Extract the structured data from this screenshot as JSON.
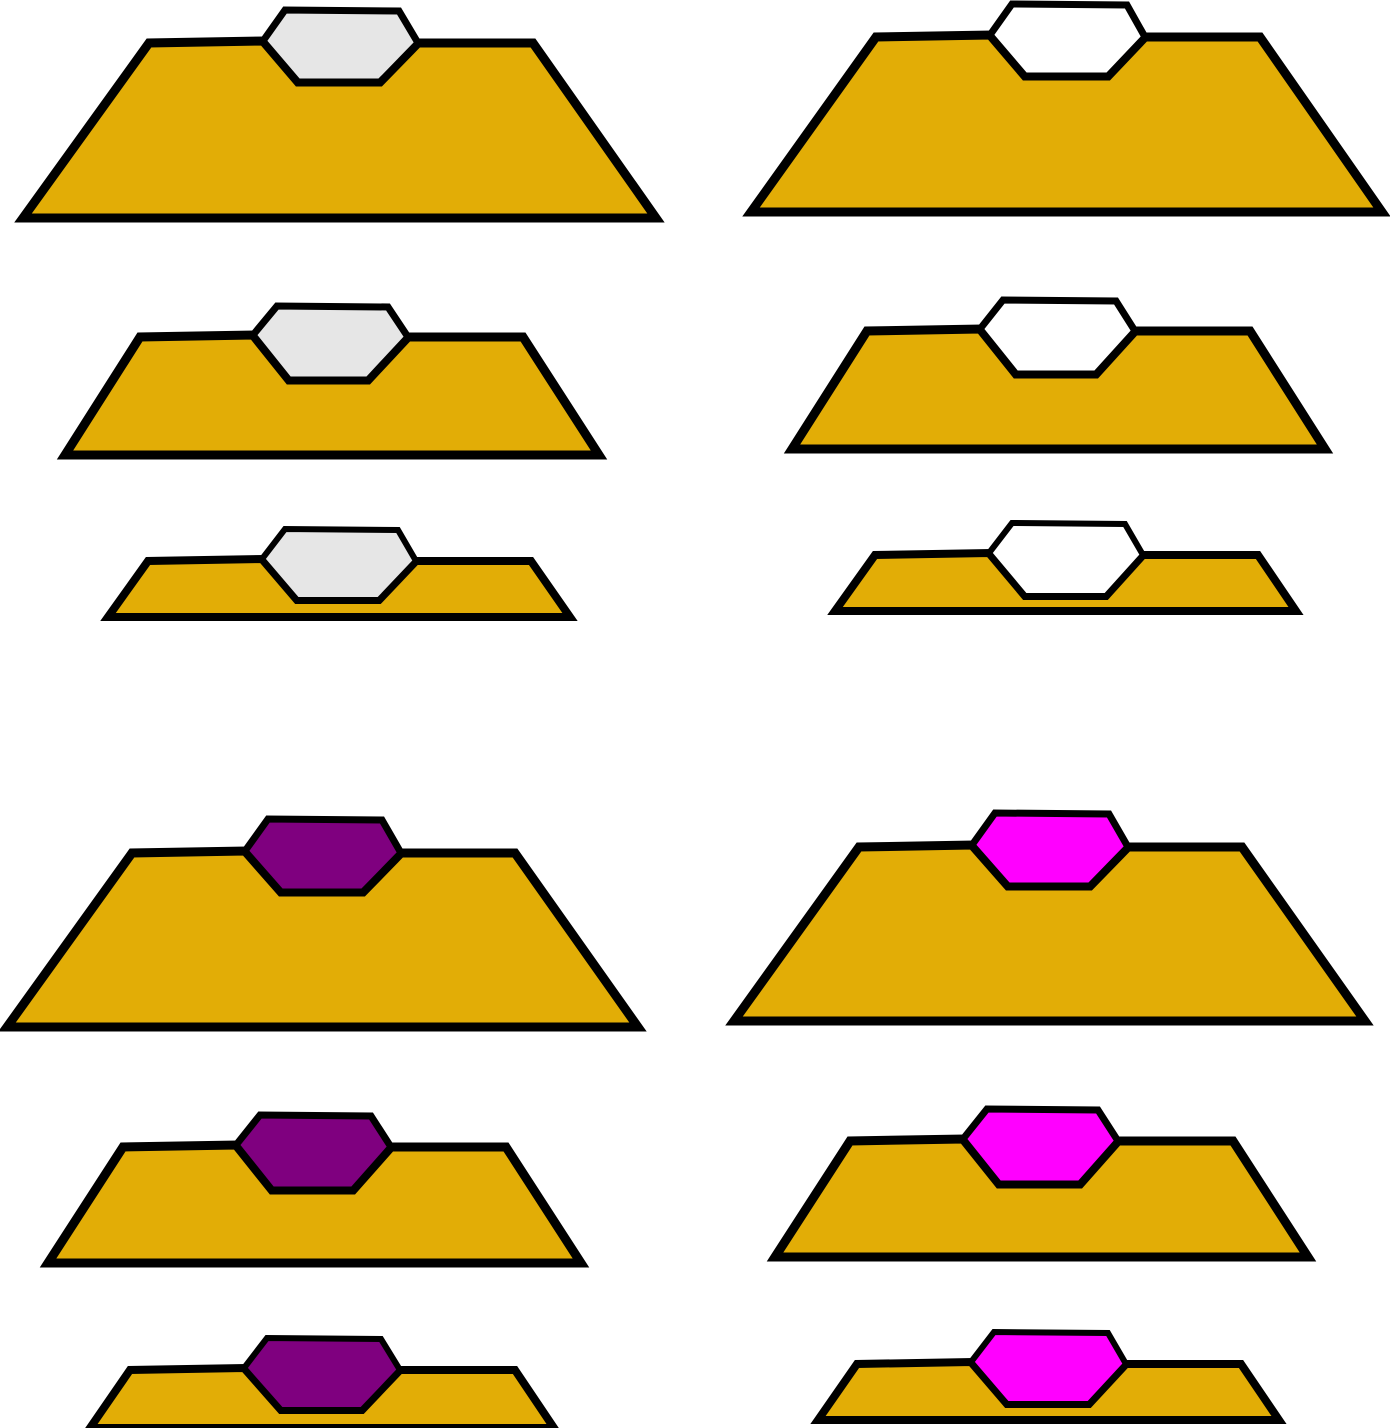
{
  "colors": {
    "base_fill": "#E2AD06",
    "outline": "#000000",
    "gem_light_gray": "#E6E6E6",
    "gem_white": "#FFFFFF",
    "gem_purple": "#7F007F",
    "gem_magenta": "#FF00FF"
  },
  "groups": [
    {
      "name": "light-gray-gem-column",
      "gem_color": "#E6E6E6",
      "sizes": [
        "large",
        "medium",
        "small"
      ]
    },
    {
      "name": "white-gem-column",
      "gem_color": "#FFFFFF",
      "sizes": [
        "large",
        "medium",
        "small"
      ]
    },
    {
      "name": "purple-gem-column",
      "gem_color": "#7F007F",
      "sizes": [
        "large",
        "medium",
        "small"
      ]
    },
    {
      "name": "magenta-gem-column",
      "gem_color": "#FF00FF",
      "sizes": [
        "large",
        "medium",
        "small"
      ]
    }
  ]
}
